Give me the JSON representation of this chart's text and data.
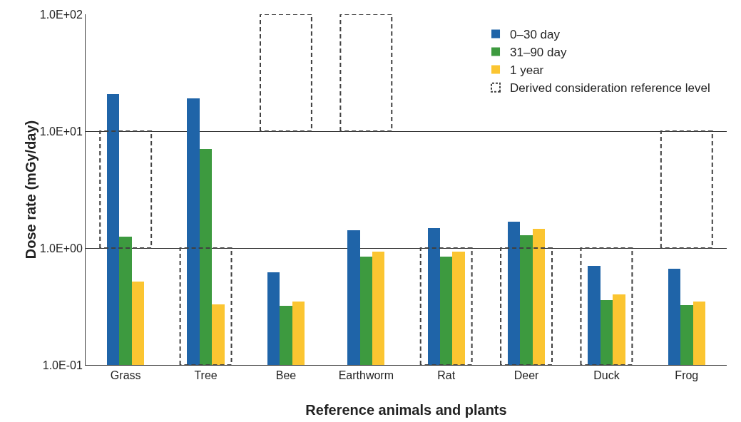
{
  "chart_data": {
    "type": "bar",
    "xlabel": "Reference animals and plants",
    "ylabel": "Dose rate (mGy/day)",
    "categories": [
      "Grass",
      "Tree",
      "Bee",
      "Earthworm",
      "Rat",
      "Deer",
      "Duck",
      "Frog"
    ],
    "series": [
      {
        "name": "0–30 day",
        "color": "#1f64a8",
        "values": [
          20.7,
          19,
          0.62,
          1.42,
          1.48,
          1.68,
          0.7,
          0.67
        ]
      },
      {
        "name": "31–90 day",
        "color": "#3d9a3f",
        "values": [
          1.25,
          7.0,
          0.32,
          0.85,
          0.85,
          1.29,
          0.36,
          0.325
        ]
      },
      {
        "name": "1 year",
        "color": "#fbc531",
        "values": [
          0.52,
          0.33,
          0.35,
          0.93,
          0.93,
          1.46,
          0.4,
          0.35
        ]
      },
      {
        "name": "Derived consideration reference level",
        "color": "#404040",
        "line_style": "dashed",
        "base": [
          1,
          0.1,
          10,
          10,
          0.1,
          0.1,
          0.1,
          1
        ],
        "values": [
          9,
          0.9,
          90,
          90,
          0.9,
          0.9,
          0.9,
          9
        ]
      }
    ],
    "log": true,
    "ylim": [
      0.1,
      100
    ],
    "yticks": [
      {
        "value": 0.1,
        "label": "1.0E-01"
      },
      {
        "value": 1,
        "label": "1.0E+00"
      },
      {
        "value": 10,
        "label": "1.0E+01"
      },
      {
        "value": 100,
        "label": "1.0E+02"
      }
    ],
    "grid": "y",
    "legend": "top right"
  }
}
